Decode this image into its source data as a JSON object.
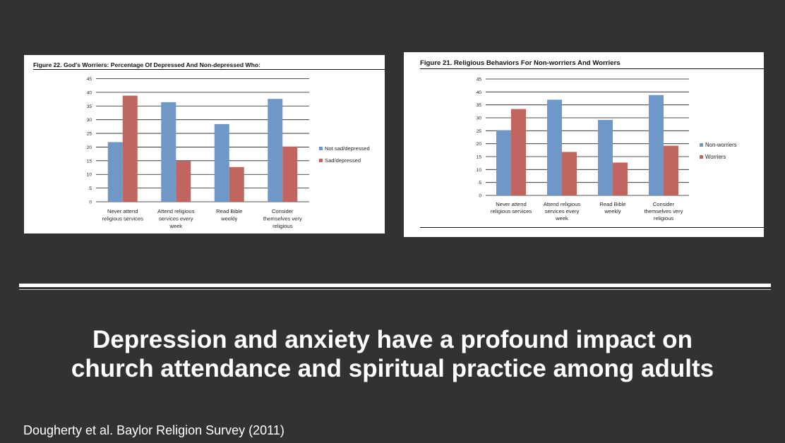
{
  "headline": {
    "line1": "Depression and anxiety have a profound impact on",
    "line2": "church attendance and spiritual practice among adults"
  },
  "citation": "Dougherty et al. Baylor Religion Survey (2011)",
  "colors": {
    "background": "#333233",
    "blue": "#6f98c9",
    "red": "#c0655f"
  },
  "chart_data": [
    {
      "type": "bar",
      "title": "Figure 22. God's Worriers: Percentage Of Depressed And Non-depressed Who:",
      "categories": [
        [
          "Never attend",
          "religious services"
        ],
        [
          "Attend religious",
          "services every",
          "week"
        ],
        [
          "Read Bible",
          "weekly"
        ],
        [
          "Consider",
          "themselves very",
          "religious"
        ]
      ],
      "series": [
        {
          "name": "Not sad/depressed",
          "color": "#6f98c9",
          "values": [
            21.8,
            36.4,
            28.4,
            37.6
          ]
        },
        {
          "name": "Sad/depressed",
          "color": "#c0655f",
          "values": [
            38.8,
            14.9,
            12.7,
            20.2
          ]
        }
      ],
      "ylim": [
        0,
        45
      ],
      "yticks": [
        "0",
        "5",
        "10",
        "15",
        "20",
        "25",
        "30",
        "35",
        "40",
        "45"
      ],
      "grid": true,
      "legend": "right"
    },
    {
      "type": "bar",
      "title": "Figure 21. Religious Behaviors For Non-worriers And Worriers",
      "categories": [
        [
          "Never attend",
          "religious services"
        ],
        [
          "Attend religious",
          "services every",
          "week"
        ],
        [
          "Read Bible",
          "weekly"
        ],
        [
          "Consider",
          "themselves very",
          "religious"
        ]
      ],
      "series": [
        {
          "name": "Non-worriers",
          "color": "#6f98c9",
          "values": [
            25.2,
            37.0,
            29.2,
            38.8
          ]
        },
        {
          "name": "Worriers",
          "color": "#c0655f",
          "values": [
            33.4,
            16.8,
            12.7,
            19.2
          ]
        }
      ],
      "ylim": [
        0,
        45
      ],
      "yticks": [
        "0",
        "5",
        "10",
        "15",
        "20",
        "25",
        "30",
        "35",
        "40",
        "45"
      ],
      "grid": true,
      "legend": "right"
    }
  ]
}
